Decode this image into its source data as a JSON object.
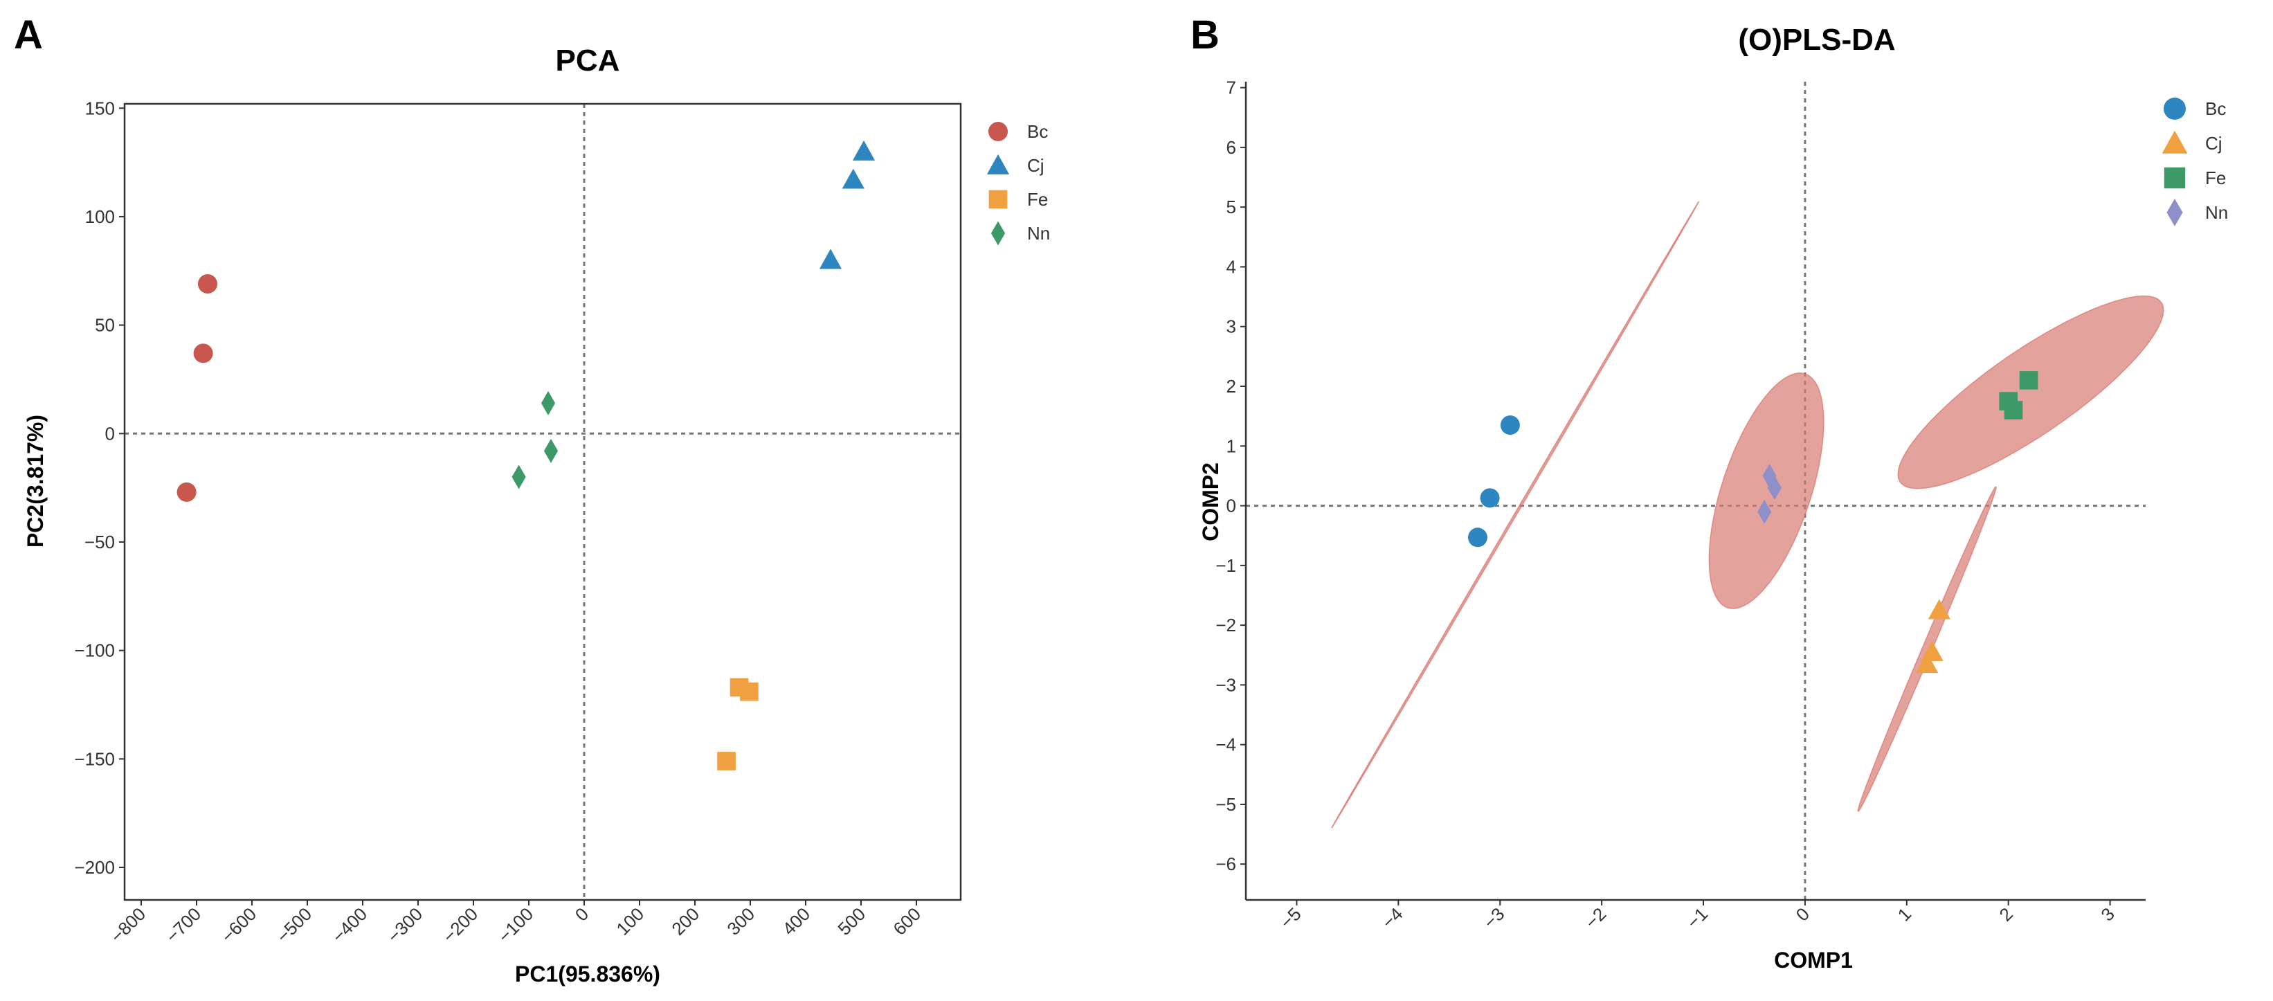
{
  "colors": {
    "Bc": "#c8574d",
    "Cj": "#2e86c1",
    "Fe": "#f0a040",
    "Nn": "#3d9967",
    "Bc_B": "#2e86c1",
    "Cj_B": "#f0a040",
    "Fe_B": "#3d9967",
    "Nn_B": "#8f8fc9",
    "ellipse": "#d97a72"
  },
  "chart_data": [
    {
      "panel": "A",
      "type": "scatter",
      "title": "PCA",
      "xlabel": "PC1(95.836%)",
      "ylabel": "PC2(3.817%)",
      "xlim": [
        -830,
        680
      ],
      "ylim": [
        -215,
        152
      ],
      "xticks": [
        -800,
        -700,
        -600,
        -500,
        -400,
        -300,
        -200,
        -100,
        0,
        100,
        200,
        300,
        400,
        500,
        600
      ],
      "xtick_labels": [
        "−800",
        "−700",
        "−600",
        "−500",
        "−400",
        "−300",
        "−200",
        "−100",
        "0",
        "100",
        "200",
        "300",
        "400",
        "500",
        "600"
      ],
      "yticks": [
        150,
        100,
        50,
        0,
        -50,
        -100,
        -150,
        -200
      ],
      "ytick_labels": [
        "150",
        "100",
        "50",
        "0",
        "−50",
        "−100",
        "−150",
        "−200"
      ],
      "reference_lines": {
        "x": 0,
        "y": 0
      },
      "legend_position": "top-right outside",
      "series": [
        {
          "name": "Bc",
          "marker": "circle",
          "points": [
            [
              -680,
              69
            ],
            [
              -688,
              37
            ],
            [
              -718,
              -27
            ]
          ]
        },
        {
          "name": "Cj",
          "marker": "triangle",
          "points": [
            [
              505,
              130
            ],
            [
              486,
              117
            ],
            [
              445,
              80
            ]
          ]
        },
        {
          "name": "Fe",
          "marker": "square",
          "points": [
            [
              280,
              -117
            ],
            [
              298,
              -119
            ],
            [
              257,
              -151
            ]
          ]
        },
        {
          "name": "Nn",
          "marker": "diamond",
          "points": [
            [
              -65,
              14
            ],
            [
              -60,
              -8
            ],
            [
              -118,
              -20
            ]
          ]
        }
      ]
    },
    {
      "panel": "B",
      "type": "scatter",
      "title": "(O)PLS-DA",
      "xlabel": "COMP1",
      "ylabel": "COMP2",
      "xlim": [
        -5.5,
        3.35
      ],
      "ylim": [
        -6.6,
        7.1
      ],
      "xticks": [
        -5,
        -4,
        -3,
        -2,
        -1,
        0,
        1,
        2,
        3
      ],
      "xtick_labels": [
        "−5",
        "−4",
        "−3",
        "−2",
        "−1",
        "0",
        "1",
        "2",
        "3"
      ],
      "yticks": [
        7,
        6,
        5,
        4,
        3,
        2,
        1,
        0,
        -1,
        -2,
        -3,
        -4,
        -5,
        -6
      ],
      "ytick_labels": [
        "7",
        "6",
        "5",
        "4",
        "3",
        "2",
        "1",
        "0",
        "−1",
        "−2",
        "−3",
        "−4",
        "−5",
        "−6"
      ],
      "reference_lines": {
        "x": 0,
        "y": 0
      },
      "legend_position": "top-right outside",
      "series": [
        {
          "name": "Bc",
          "marker": "circle",
          "points": [
            [
              -2.9,
              1.35
            ],
            [
              -3.1,
              0.13
            ],
            [
              -3.22,
              -0.53
            ]
          ]
        },
        {
          "name": "Cj",
          "marker": "triangle",
          "points": [
            [
              1.32,
              -1.75
            ],
            [
              1.25,
              -2.45
            ],
            [
              1.2,
              -2.65
            ]
          ]
        },
        {
          "name": "Fe",
          "marker": "square",
          "points": [
            [
              2.2,
              2.1
            ],
            [
              2.0,
              1.75
            ],
            [
              2.05,
              1.6
            ]
          ]
        },
        {
          "name": "Nn",
          "marker": "diamond",
          "points": [
            [
              -0.35,
              0.5
            ],
            [
              -0.3,
              0.3
            ],
            [
              -0.4,
              -0.1
            ]
          ]
        }
      ],
      "ellipses": [
        {
          "group": "Bc",
          "center": [
            -2.85,
            -0.15
          ],
          "semi_major": 5.55,
          "semi_minor": 0.012,
          "angle_deg": 71
        },
        {
          "group": "Cj",
          "center": [
            1.2,
            -2.4
          ],
          "semi_major": 2.8,
          "semi_minor": 0.05,
          "angle_deg": 76
        },
        {
          "group": "Fe",
          "center": [
            2.22,
            1.9
          ],
          "semi_major": 2.0,
          "semi_minor": 0.55,
          "angle_deg": 52
        },
        {
          "group": "Nn",
          "center": [
            -0.38,
            0.25
          ],
          "semi_major": 2.0,
          "semi_minor": 0.45,
          "angle_deg": 80
        }
      ]
    }
  ]
}
